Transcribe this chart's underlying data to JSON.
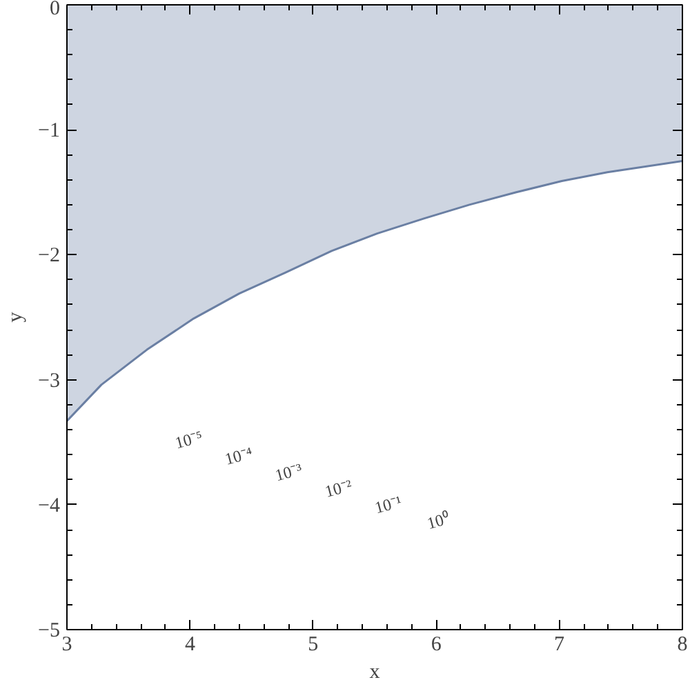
{
  "chart_data": {
    "type": "area",
    "xlabel": "x",
    "ylabel": "y",
    "xlim": [
      3,
      8
    ],
    "ylim": [
      -5,
      0
    ],
    "xticks": [
      3,
      4,
      5,
      6,
      7,
      8
    ],
    "yticks": [
      -5,
      -4,
      -3,
      -2,
      -1,
      0
    ],
    "grid": false,
    "line_style": "solid",
    "x": [
      3,
      3.28,
      3.65,
      4.03,
      4.4,
      4.78,
      5.15,
      5.52,
      5.9,
      6.27,
      6.65,
      7.02,
      7.39,
      8
    ],
    "series": [
      {
        "color": "#6a7fa3",
        "values": [
          -3.33,
          -3.04,
          -2.76,
          -2.51,
          -2.31,
          -2.14,
          -1.97,
          -1.83,
          -1.71,
          -1.6,
          -1.5,
          -1.41,
          -1.34,
          -1.25
        ]
      }
    ],
    "annotations": [
      "10⁻⁵",
      "10⁻⁴",
      "10⁻³",
      "10⁻²",
      "10⁻¹",
      "10⁰"
    ]
  }
}
